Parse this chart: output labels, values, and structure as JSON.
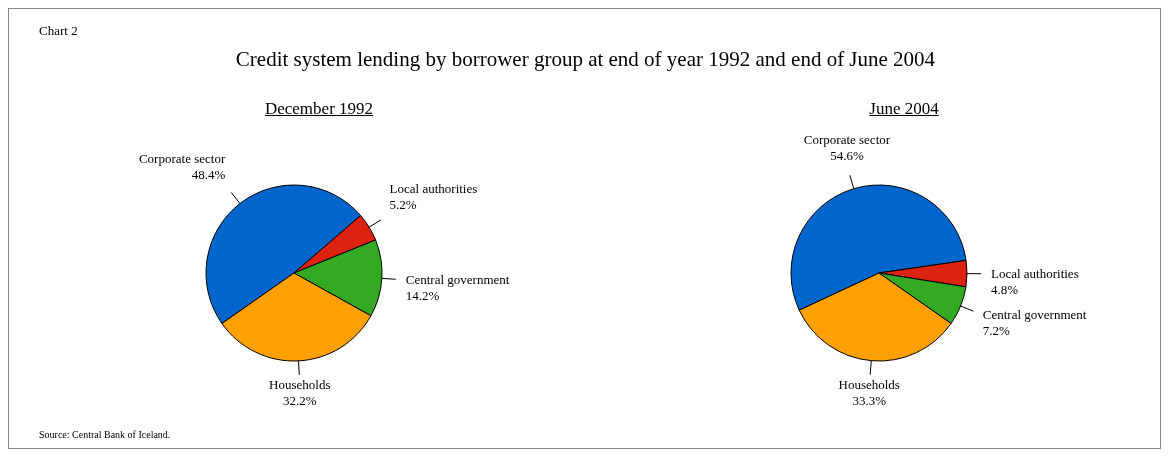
{
  "chart_data": [
    {
      "type": "pie",
      "title": "December 1992",
      "categories": [
        "Corporate sector",
        "Local authorities",
        "Central government",
        "Households"
      ],
      "values": [
        48.4,
        5.2,
        14.2,
        32.2
      ],
      "value_labels": [
        "48.4%",
        "5.2%",
        "14.2%",
        "32.2%"
      ],
      "colors": [
        "#0066cc",
        "#dd2211",
        "#33aa22",
        "#ffa000"
      ],
      "annotations": [
        "Chart 2",
        "Credit system lending by borrower group at end of year 1992 and end of June 2004",
        "Source: Central Bank of Iceland."
      ]
    },
    {
      "type": "pie",
      "title": "June 2004",
      "categories": [
        "Corporate sector",
        "Local authorities",
        "Central government",
        "Households"
      ],
      "values": [
        54.6,
        4.8,
        7.2,
        33.3
      ],
      "value_labels": [
        "54.6%",
        "4.8%",
        "7.2%",
        "33.3%"
      ],
      "colors": [
        "#0066cc",
        "#dd2211",
        "#33aa22",
        "#ffa000"
      ]
    }
  ]
}
